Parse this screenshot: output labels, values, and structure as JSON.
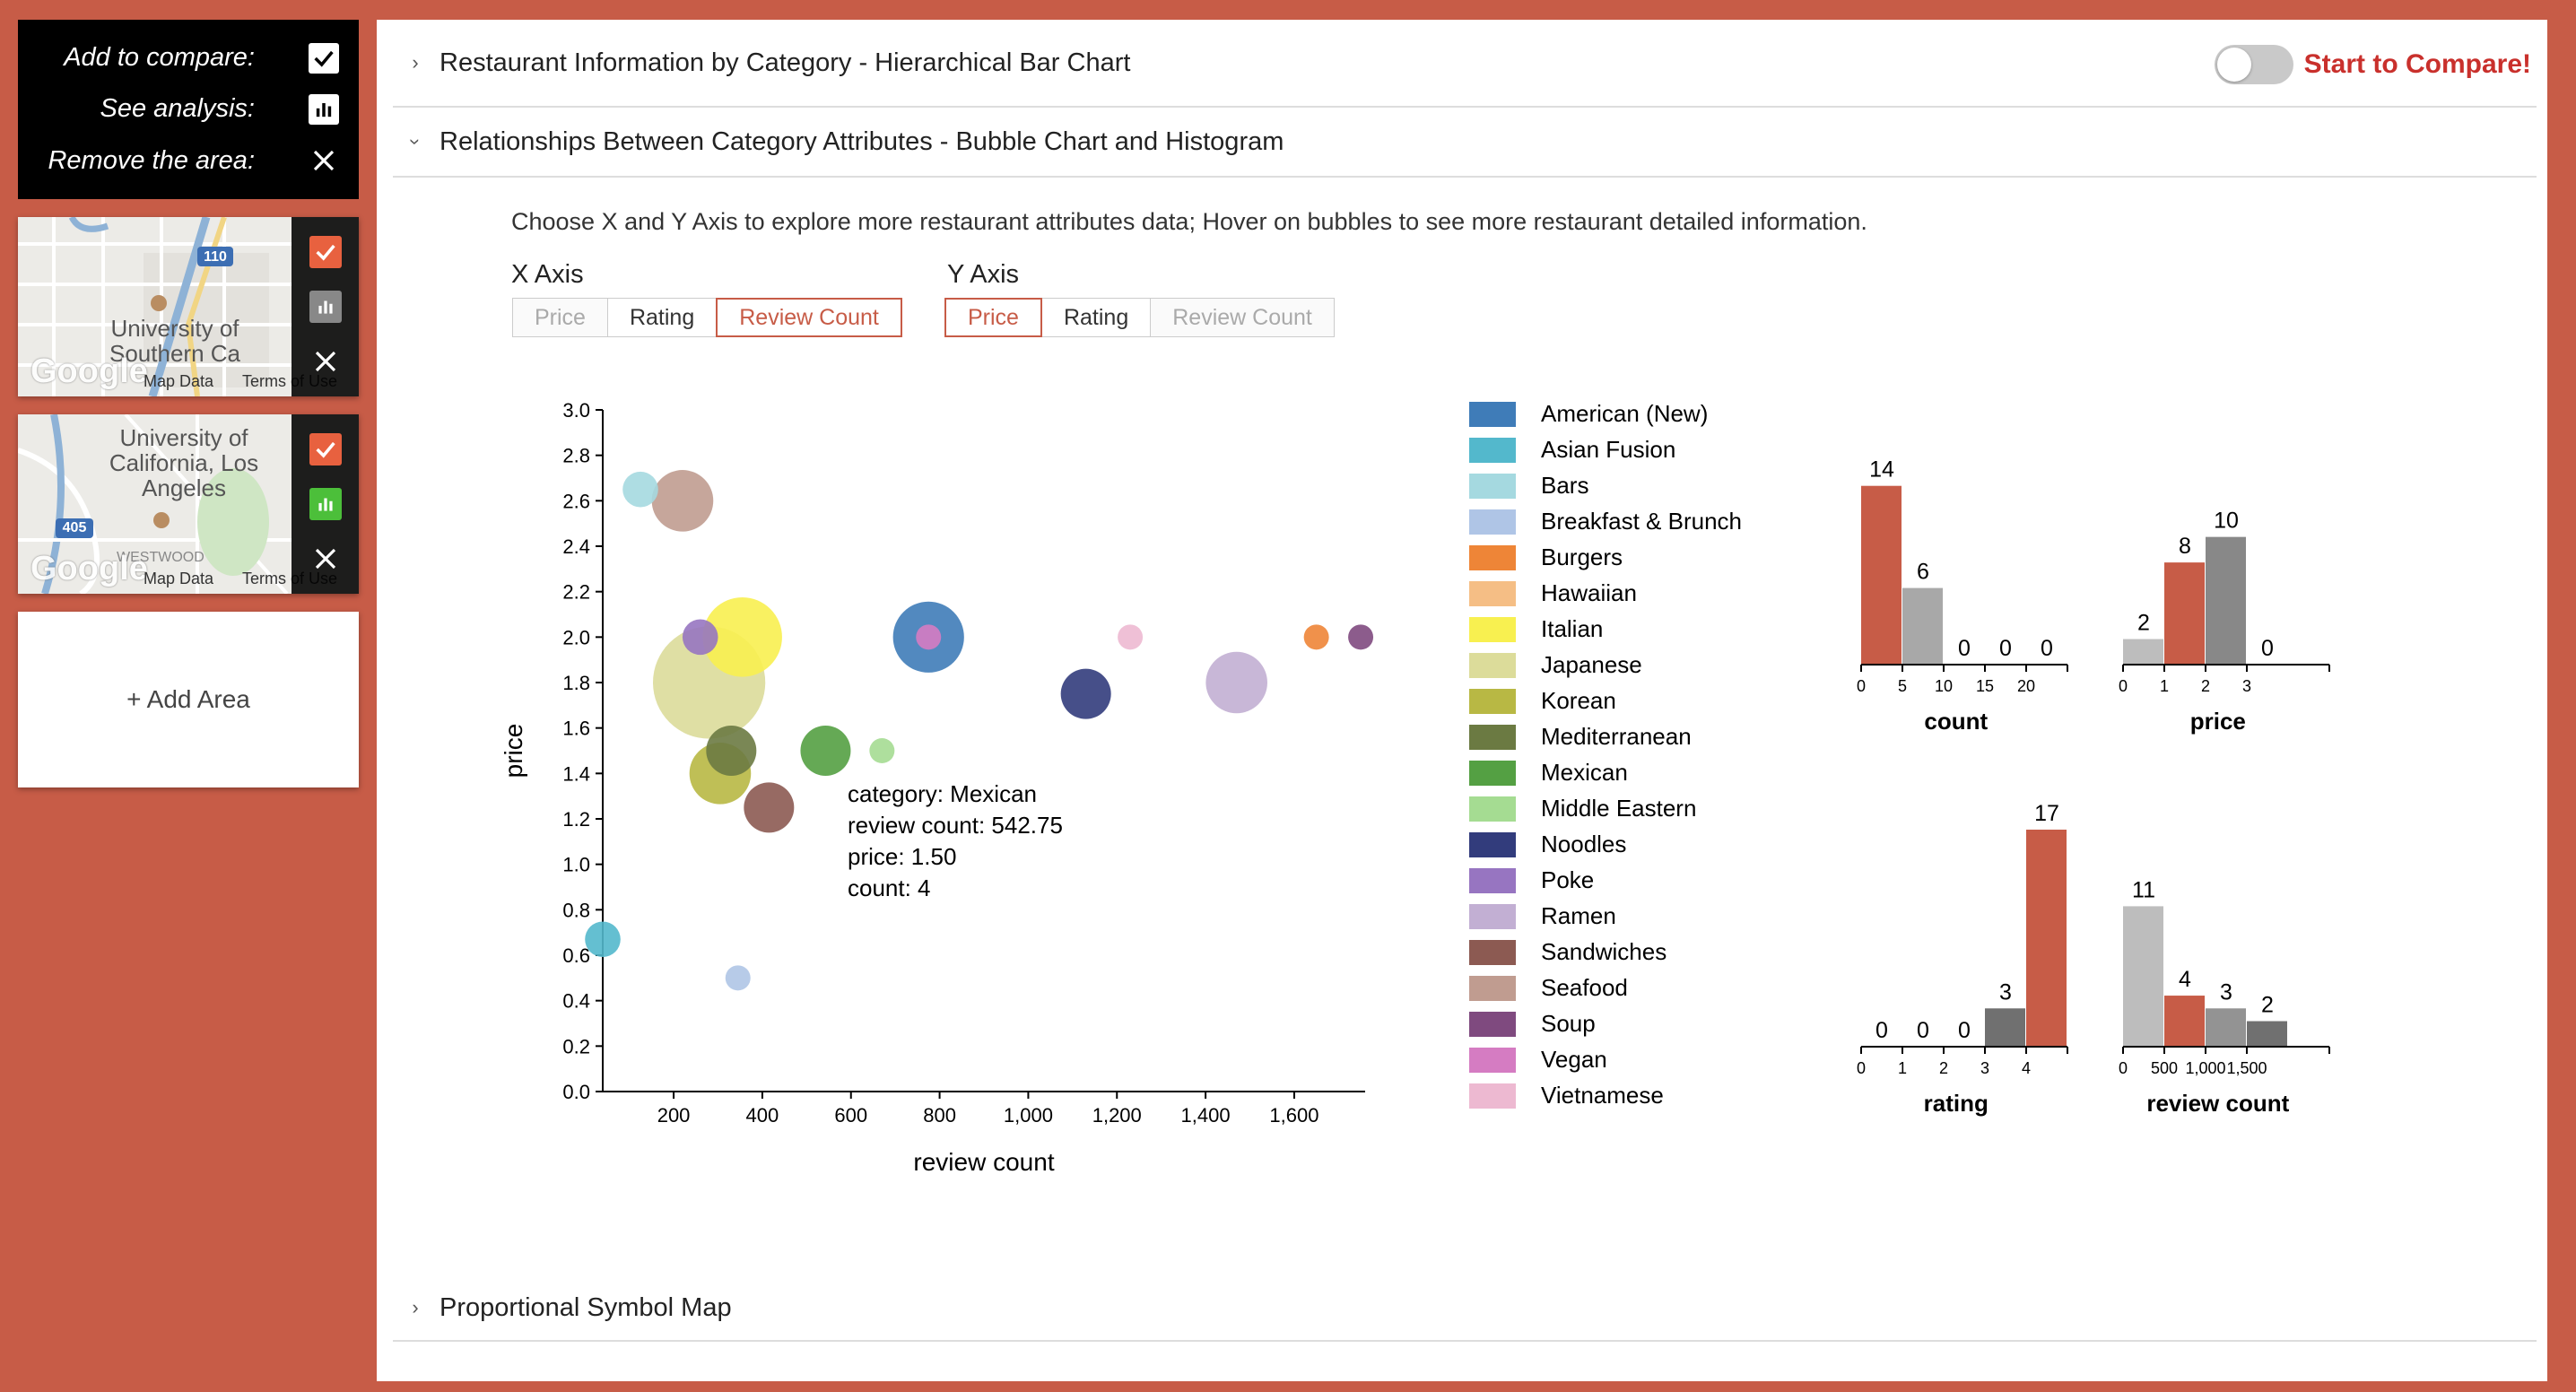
{
  "sidebar": {
    "legend": {
      "add_to_compare": "Add to compare:",
      "see_analysis": "See analysis:",
      "remove_area": "Remove the area:"
    },
    "areas": [
      {
        "title": "University of Southern Ca",
        "map_data": "Map Data",
        "terms": "Terms of Use",
        "badge": "110",
        "google": "Google"
      },
      {
        "title": "University of California, Los Angeles",
        "map_data": "Map Data",
        "terms": "Terms of Use",
        "badge": "405",
        "place": "WESTWOOD",
        "google": "Google"
      }
    ],
    "add_area_label": "+ Add Area"
  },
  "main": {
    "sections": [
      {
        "title": "Restaurant Information by Category - Hierarchical Bar Chart",
        "expanded": false
      },
      {
        "title": "Relationships Between Category Attributes - Bubble Chart and Histogram",
        "expanded": true
      },
      {
        "title": "Proportional Symbol Map",
        "expanded": false
      }
    ],
    "compare_label": "Start to Compare!",
    "instruction": "Choose X and Y Axis to explore more restaurant attributes data; Hover on bubbles to see more restaurant detailed information.",
    "x_axis": {
      "label": "X Axis",
      "options": [
        "Price",
        "Rating",
        "Review Count"
      ],
      "selected": "Review Count",
      "disabled": "Price"
    },
    "y_axis": {
      "label": "Y Axis",
      "options": [
        "Price",
        "Rating",
        "Review Count"
      ],
      "selected": "Price",
      "disabled": "Review Count"
    }
  },
  "chart_data": [
    {
      "type": "scatter",
      "xlabel": "review count",
      "ylabel": "price",
      "xlim": [
        40,
        1760
      ],
      "ylim": [
        0,
        3
      ],
      "xticks": [
        200,
        400,
        600,
        800,
        1000,
        1200,
        1400,
        1600
      ],
      "xtick_labels": [
        "200",
        "400",
        "600",
        "800",
        "1,000",
        "1,200",
        "1,400",
        "1,600"
      ],
      "yticks": [
        0,
        0.2,
        0.4,
        0.6,
        0.8,
        1.0,
        1.2,
        1.4,
        1.6,
        1.8,
        2.0,
        2.2,
        2.4,
        2.6,
        2.8,
        3.0
      ],
      "ytick_labels": [
        "0.0",
        "0.2",
        "0.4",
        "0.6",
        "0.8",
        "1.0",
        "1.2",
        "1.4",
        "1.6",
        "1.8",
        "2.0",
        "2.2",
        "2.4",
        "2.6",
        "2.8",
        "3.0"
      ],
      "points": [
        {
          "category": "Bars",
          "x": 125,
          "y": 2.65,
          "count": 2,
          "color": "#A5D9E0"
        },
        {
          "category": "Seafood",
          "x": 220,
          "y": 2.6,
          "count": 6,
          "color": "#C09C90"
        },
        {
          "category": "Japanese",
          "x": 280,
          "y": 1.8,
          "count": 20,
          "color": "#DCDC9A"
        },
        {
          "category": "Italian",
          "x": 355,
          "y": 2.0,
          "count": 10,
          "color": "#F8F050"
        },
        {
          "category": "Poke",
          "x": 260,
          "y": 2.0,
          "count": 2,
          "color": "#9775C1"
        },
        {
          "category": "Korean",
          "x": 305,
          "y": 1.4,
          "count": 6,
          "color": "#B8B844"
        },
        {
          "category": "Mediterranean",
          "x": 330,
          "y": 1.5,
          "count": 4,
          "color": "#6B7A42"
        },
        {
          "category": "Sandwiches",
          "x": 415,
          "y": 1.25,
          "count": 4,
          "color": "#8C5A52"
        },
        {
          "category": "Mexican",
          "x": 542.75,
          "y": 1.5,
          "count": 4,
          "color": "#54A043"
        },
        {
          "category": "Middle Eastern",
          "x": 670,
          "y": 1.5,
          "count": 1,
          "color": "#A5DC92"
        },
        {
          "category": "American (New)",
          "x": 775,
          "y": 2.0,
          "count": 8,
          "color": "#3F7CB8"
        },
        {
          "category": "Vegan",
          "x": 775,
          "y": 2.0,
          "count": 1,
          "color": "#D57CC2"
        },
        {
          "category": "Noodles",
          "x": 1130,
          "y": 1.75,
          "count": 4,
          "color": "#323C7C"
        },
        {
          "category": "Vietnamese",
          "x": 1230,
          "y": 2.0,
          "count": 1,
          "color": "#EDB9D1"
        },
        {
          "category": "Ramen",
          "x": 1470,
          "y": 1.8,
          "count": 6,
          "color": "#C2AFD3"
        },
        {
          "category": "Burgers",
          "x": 1650,
          "y": 2.0,
          "count": 1,
          "color": "#EE8537"
        },
        {
          "category": "Soup",
          "x": 1750,
          "y": 2.0,
          "count": 1,
          "color": "#7F4A7F"
        },
        {
          "category": "Asian Fusion",
          "x": 40,
          "y": 0.67,
          "count": 2,
          "color": "#53B8CC"
        },
        {
          "category": "Breakfast & Brunch",
          "x": 345,
          "y": 0.5,
          "count": 1,
          "color": "#AFC5E6"
        }
      ],
      "tooltip": {
        "category": "category: Mexican",
        "review_count": "review count: 542.75",
        "price": "price: 1.50",
        "count": "count: 4"
      }
    },
    {
      "type": "bar",
      "legend": [
        {
          "name": "American (New)",
          "color": "#3F7CB8"
        },
        {
          "name": "Asian Fusion",
          "color": "#53B8CC"
        },
        {
          "name": "Bars",
          "color": "#A5D9E0"
        },
        {
          "name": "Breakfast & Brunch",
          "color": "#AFC5E6"
        },
        {
          "name": "Burgers",
          "color": "#EE8537"
        },
        {
          "name": "Hawaiian",
          "color": "#F5BE85"
        },
        {
          "name": "Italian",
          "color": "#F8F050"
        },
        {
          "name": "Japanese",
          "color": "#DCDC9A"
        },
        {
          "name": "Korean",
          "color": "#B8B844"
        },
        {
          "name": "Mediterranean",
          "color": "#6B7A42"
        },
        {
          "name": "Mexican",
          "color": "#54A043"
        },
        {
          "name": "Middle Eastern",
          "color": "#A5DC92"
        },
        {
          "name": "Noodles",
          "color": "#323C7C"
        },
        {
          "name": "Poke",
          "color": "#9775C1"
        },
        {
          "name": "Ramen",
          "color": "#C2AFD3"
        },
        {
          "name": "Sandwiches",
          "color": "#8C5A52"
        },
        {
          "name": "Seafood",
          "color": "#C09C90"
        },
        {
          "name": "Soup",
          "color": "#7F4A7F"
        },
        {
          "name": "Vegan",
          "color": "#D57CC2"
        },
        {
          "name": "Vietnamese",
          "color": "#EDB9D1"
        }
      ]
    },
    {
      "type": "bar",
      "xlabel": "count",
      "ticks": [
        "0",
        "5",
        "10",
        "15",
        "20"
      ],
      "values": [
        14,
        6,
        0,
        0,
        0
      ],
      "colors": [
        "#C75C47",
        "#A8A8A8",
        "#888888",
        "#888888",
        "#888888"
      ],
      "ymax": 17
    },
    {
      "type": "bar",
      "xlabel": "price",
      "ticks": [
        "0",
        "1",
        "2",
        "3"
      ],
      "values": [
        2,
        8,
        10,
        0
      ],
      "colors": [
        "#BDBDBD",
        "#C75C47",
        "#888888",
        "#888888"
      ],
      "ymax": 17
    },
    {
      "type": "bar",
      "xlabel": "rating",
      "ticks": [
        "0",
        "1",
        "2",
        "3",
        "4"
      ],
      "values": [
        0,
        0,
        0,
        3,
        17
      ],
      "colors": [
        "#888888",
        "#888888",
        "#888888",
        "#707070",
        "#C75C47"
      ],
      "ymax": 17
    },
    {
      "type": "bar",
      "xlabel": "review count",
      "ticks": [
        "0",
        "500",
        "1,000",
        "1,500"
      ],
      "values": [
        11,
        4,
        3,
        2
      ],
      "colors": [
        "#BDBDBD",
        "#C75C47",
        "#939393",
        "#707070"
      ],
      "ymax": 17
    }
  ]
}
